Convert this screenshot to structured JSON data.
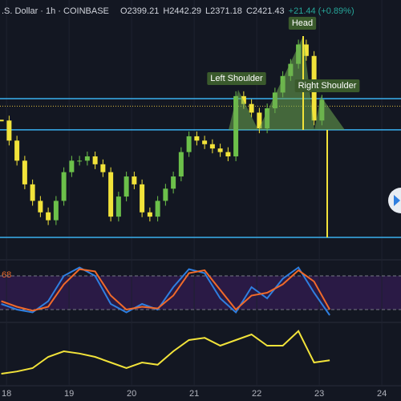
{
  "header": {
    "symbol": ".S. Dollar · 1h · COINBASE",
    "ohlc": [
      "O2399.21",
      "H2442.29",
      "L2371.18",
      "C2421.43"
    ],
    "change": "+21.44 (+0.89%)"
  },
  "chart_data": [
    {
      "type": "candlestick",
      "x": [
        -2,
        1,
        4,
        7,
        10,
        13,
        16,
        19,
        22,
        25,
        28,
        31,
        34,
        37,
        40,
        43,
        46,
        49,
        52,
        55,
        58,
        61,
        64,
        67,
        70,
        73,
        76,
        79,
        82,
        85,
        88,
        91,
        94,
        97,
        100,
        103,
        106,
        109,
        112,
        115,
        118,
        121
      ],
      "values": [
        2392,
        2364,
        2336,
        2303,
        2280,
        2264,
        2253,
        2280,
        2320,
        2336,
        2336,
        2342,
        2331,
        2320,
        2258,
        2286,
        2314,
        2303,
        2264,
        2258,
        2280,
        2297,
        2314,
        2348,
        2370,
        2364,
        2359,
        2353,
        2348,
        2342,
        2426,
        2415,
        2403,
        2381,
        2409,
        2431,
        2454,
        2471,
        2498,
        2482,
        2392,
        2421
      ],
      "up_color": "#6cc04a",
      "down_color": "#f2e33a",
      "xlim": [
        -2.5,
        151.35
      ],
      "ylim": [
        2200,
        2560
      ],
      "xticks": [
        {
          "value": 0,
          "label": "18"
        },
        {
          "value": 24,
          "label": "19"
        },
        {
          "value": 48,
          "label": "20"
        },
        {
          "value": 72,
          "label": "21"
        },
        {
          "value": 96,
          "label": "22"
        },
        {
          "value": 120,
          "label": "23"
        },
        {
          "value": 144,
          "label": "24"
        }
      ],
      "levels": [
        2422.5,
        2379,
        2229
      ],
      "level_color": "#3ab0f0",
      "dotted_level": 2412,
      "annotations": [
        "Left Shoulder",
        "Head",
        "Right Shoulder"
      ],
      "grid": true
    },
    {
      "type": "line",
      "x": [
        -2,
        4,
        10,
        16,
        22,
        28,
        34,
        40,
        46,
        52,
        58,
        64,
        70,
        76,
        82,
        88,
        94,
        100,
        106,
        112,
        118,
        124
      ],
      "series": [
        {
          "color": "#2f7fe0",
          "values": [
            30,
            20,
            15,
            35,
            80,
            95,
            80,
            30,
            15,
            30,
            20,
            60,
            92,
            85,
            40,
            15,
            60,
            40,
            75,
            95,
            50,
            10
          ]
        },
        {
          "color": "#f06a2a",
          "values": [
            35,
            25,
            18,
            25,
            65,
            92,
            88,
            45,
            20,
            25,
            22,
            45,
            85,
            90,
            55,
            20,
            45,
            50,
            65,
            90,
            70,
            20
          ]
        }
      ],
      "ylim": [
        0,
        100
      ],
      "bands": [
        20,
        80
      ],
      "label": "68"
    },
    {
      "type": "line",
      "x": [
        -2,
        4,
        10,
        16,
        22,
        28,
        34,
        40,
        46,
        52,
        58,
        64,
        70,
        76,
        82,
        88,
        94,
        100,
        106,
        112,
        118,
        124
      ],
      "series": [
        {
          "color": "#f2e33a",
          "values": [
            20,
            24,
            30,
            50,
            60,
            56,
            50,
            40,
            30,
            40,
            36,
            60,
            80,
            84,
            70,
            80,
            90,
            70,
            70,
            96,
            40,
            44
          ]
        }
      ],
      "ylim": [
        0,
        100
      ]
    }
  ]
}
